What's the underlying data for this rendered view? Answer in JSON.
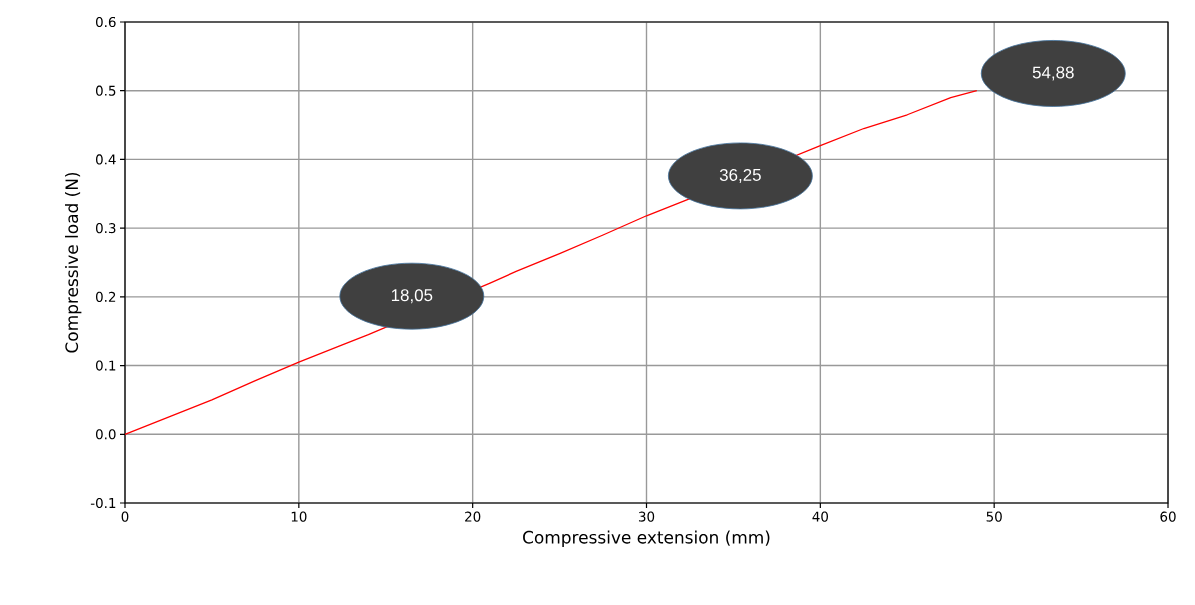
{
  "chart_data": {
    "type": "line",
    "xlabel": "Compressive extension (mm)",
    "ylabel": "Compressive load (N)",
    "x": [
      0,
      2.5,
      5,
      7.5,
      10,
      12.5,
      14,
      21,
      22.5,
      25,
      27.5,
      30,
      32.5,
      40,
      42.5,
      45,
      47.5,
      49
    ],
    "values": [
      0.0,
      0.025,
      0.05,
      0.078,
      0.105,
      0.13,
      0.145,
      0.22,
      0.237,
      0.263,
      0.29,
      0.318,
      0.343,
      0.42,
      0.445,
      0.465,
      0.49,
      0.5
    ],
    "color": "#ff0000",
    "xlim": [
      0,
      60
    ],
    "ylim": [
      -0.1,
      0.6
    ],
    "xticks": [
      0,
      10,
      20,
      30,
      40,
      50,
      60
    ],
    "yticks": [
      -0.1,
      {
        "value": 0,
        "label": "0.0"
      },
      0.1,
      0.2,
      0.3,
      0.4,
      0.5,
      0.6
    ],
    "grid": true,
    "marker": "none",
    "line_style": "solid",
    "annotations": [
      "18,05",
      "36,25",
      "54,88"
    ]
  }
}
